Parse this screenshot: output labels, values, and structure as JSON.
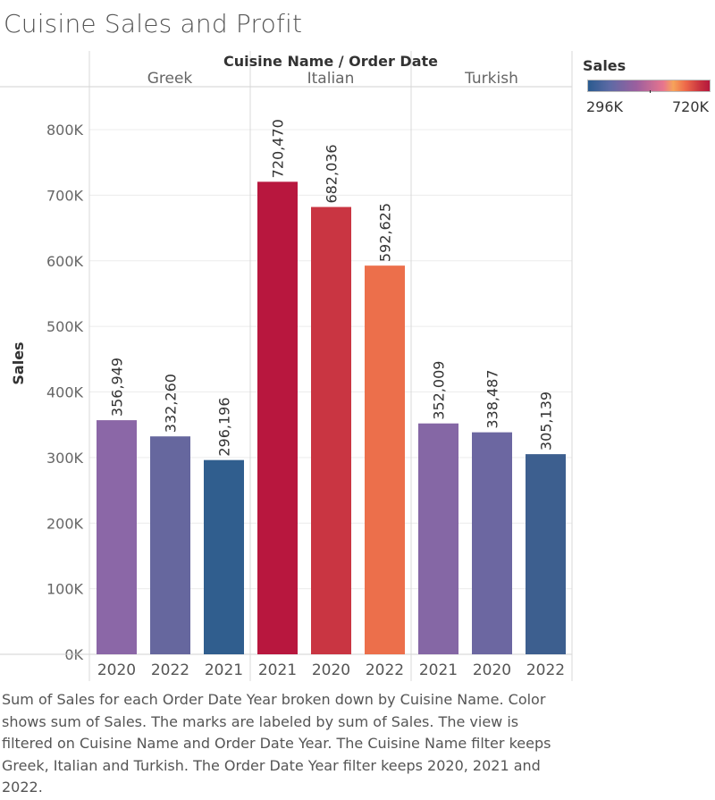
{
  "title": "Cuisine Sales and Profit",
  "header": "Cuisine Name  /  Order Date",
  "caption": "Sum of Sales for each Order Date Year broken down by Cuisine Name.  Color shows sum of Sales.  The marks are labeled by sum of Sales. The view is filtered on Cuisine Name and Order Date Year. The Cuisine Name filter keeps Greek, Italian and Turkish. The Order Date Year filter keeps 2020, 2021 and 2022.",
  "legend": {
    "title": "Sales",
    "min_label": "296K",
    "max_label": "720K"
  },
  "chart_data": {
    "type": "bar",
    "ylabel": "Sales",
    "ylim": [
      0,
      850000
    ],
    "yticks": [
      0,
      100000,
      200000,
      300000,
      400000,
      500000,
      600000,
      700000,
      800000
    ],
    "ytick_labels": [
      "0K",
      "100K",
      "200K",
      "300K",
      "400K",
      "500K",
      "600K",
      "700K",
      "800K"
    ],
    "grid": true,
    "legend_position": "top-right",
    "groups": [
      {
        "name": "Greek",
        "bars": [
          {
            "year": "2020",
            "value": 356949,
            "label": "356,949",
            "color": "#8b67a7"
          },
          {
            "year": "2022",
            "value": 332260,
            "label": "332,260",
            "color": "#66679e"
          },
          {
            "year": "2021",
            "value": 296196,
            "label": "296,196",
            "color": "#305e8e"
          }
        ]
      },
      {
        "name": "Italian",
        "bars": [
          {
            "year": "2021",
            "value": 720470,
            "label": "720,470",
            "color": "#b8173e"
          },
          {
            "year": "2020",
            "value": 682036,
            "label": "682,036",
            "color": "#c93542"
          },
          {
            "year": "2022",
            "value": 592625,
            "label": "592,625",
            "color": "#ec6f4b"
          }
        ]
      },
      {
        "name": "Turkish",
        "bars": [
          {
            "year": "2021",
            "value": 352009,
            "label": "352,009",
            "color": "#8567a5"
          },
          {
            "year": "2020",
            "value": 338487,
            "label": "338,487",
            "color": "#6c67a1"
          },
          {
            "year": "2022",
            "value": 305139,
            "label": "305,139",
            "color": "#3d5f8f"
          }
        ]
      }
    ]
  }
}
